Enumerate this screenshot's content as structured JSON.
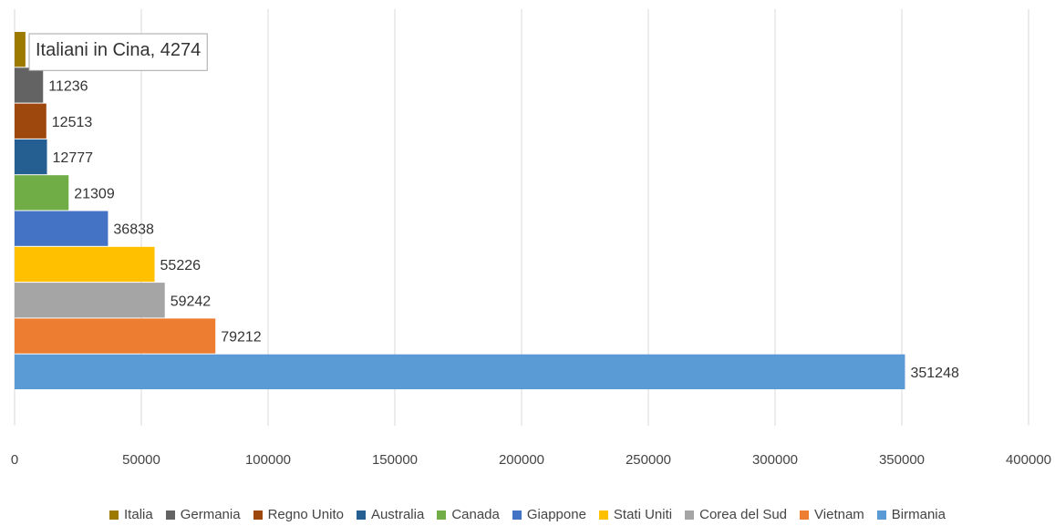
{
  "chart_data": {
    "type": "bar",
    "orientation": "horizontal",
    "title": "",
    "xlabel": "",
    "ylabel": "",
    "xlim": [
      0,
      400000
    ],
    "x_ticks": [
      "0",
      "50000",
      "100000",
      "150000",
      "200000",
      "250000",
      "300000",
      "350000",
      "400000"
    ],
    "grid": true,
    "legend_position": "bottom",
    "series": [
      {
        "name": "Italia",
        "value": 4274,
        "color": "#9C7A00",
        "label": "Italiani in Cina, 4274",
        "label_style": "callout"
      },
      {
        "name": "Germania",
        "value": 11236,
        "color": "#636363",
        "label": "11236"
      },
      {
        "name": "Regno Unito",
        "value": 12513,
        "color": "#9E480E",
        "label": "12513"
      },
      {
        "name": "Australia",
        "value": 12777,
        "color": "#255E91",
        "label": "12777"
      },
      {
        "name": "Canada",
        "value": 21309,
        "color": "#70AD47",
        "label": "21309"
      },
      {
        "name": "Giappone",
        "value": 36838,
        "color": "#4472C4",
        "label": "36838"
      },
      {
        "name": "Stati Uniti",
        "value": 55226,
        "color": "#FFC000",
        "label": "55226"
      },
      {
        "name": "Corea del Sud",
        "value": 59242,
        "color": "#A5A5A5",
        "label": "59242"
      },
      {
        "name": "Vietnam",
        "value": 79212,
        "color": "#ED7D31",
        "label": "79212"
      },
      {
        "name": "Birmania",
        "value": 351248,
        "color": "#5B9BD5",
        "label": "351248"
      }
    ]
  }
}
